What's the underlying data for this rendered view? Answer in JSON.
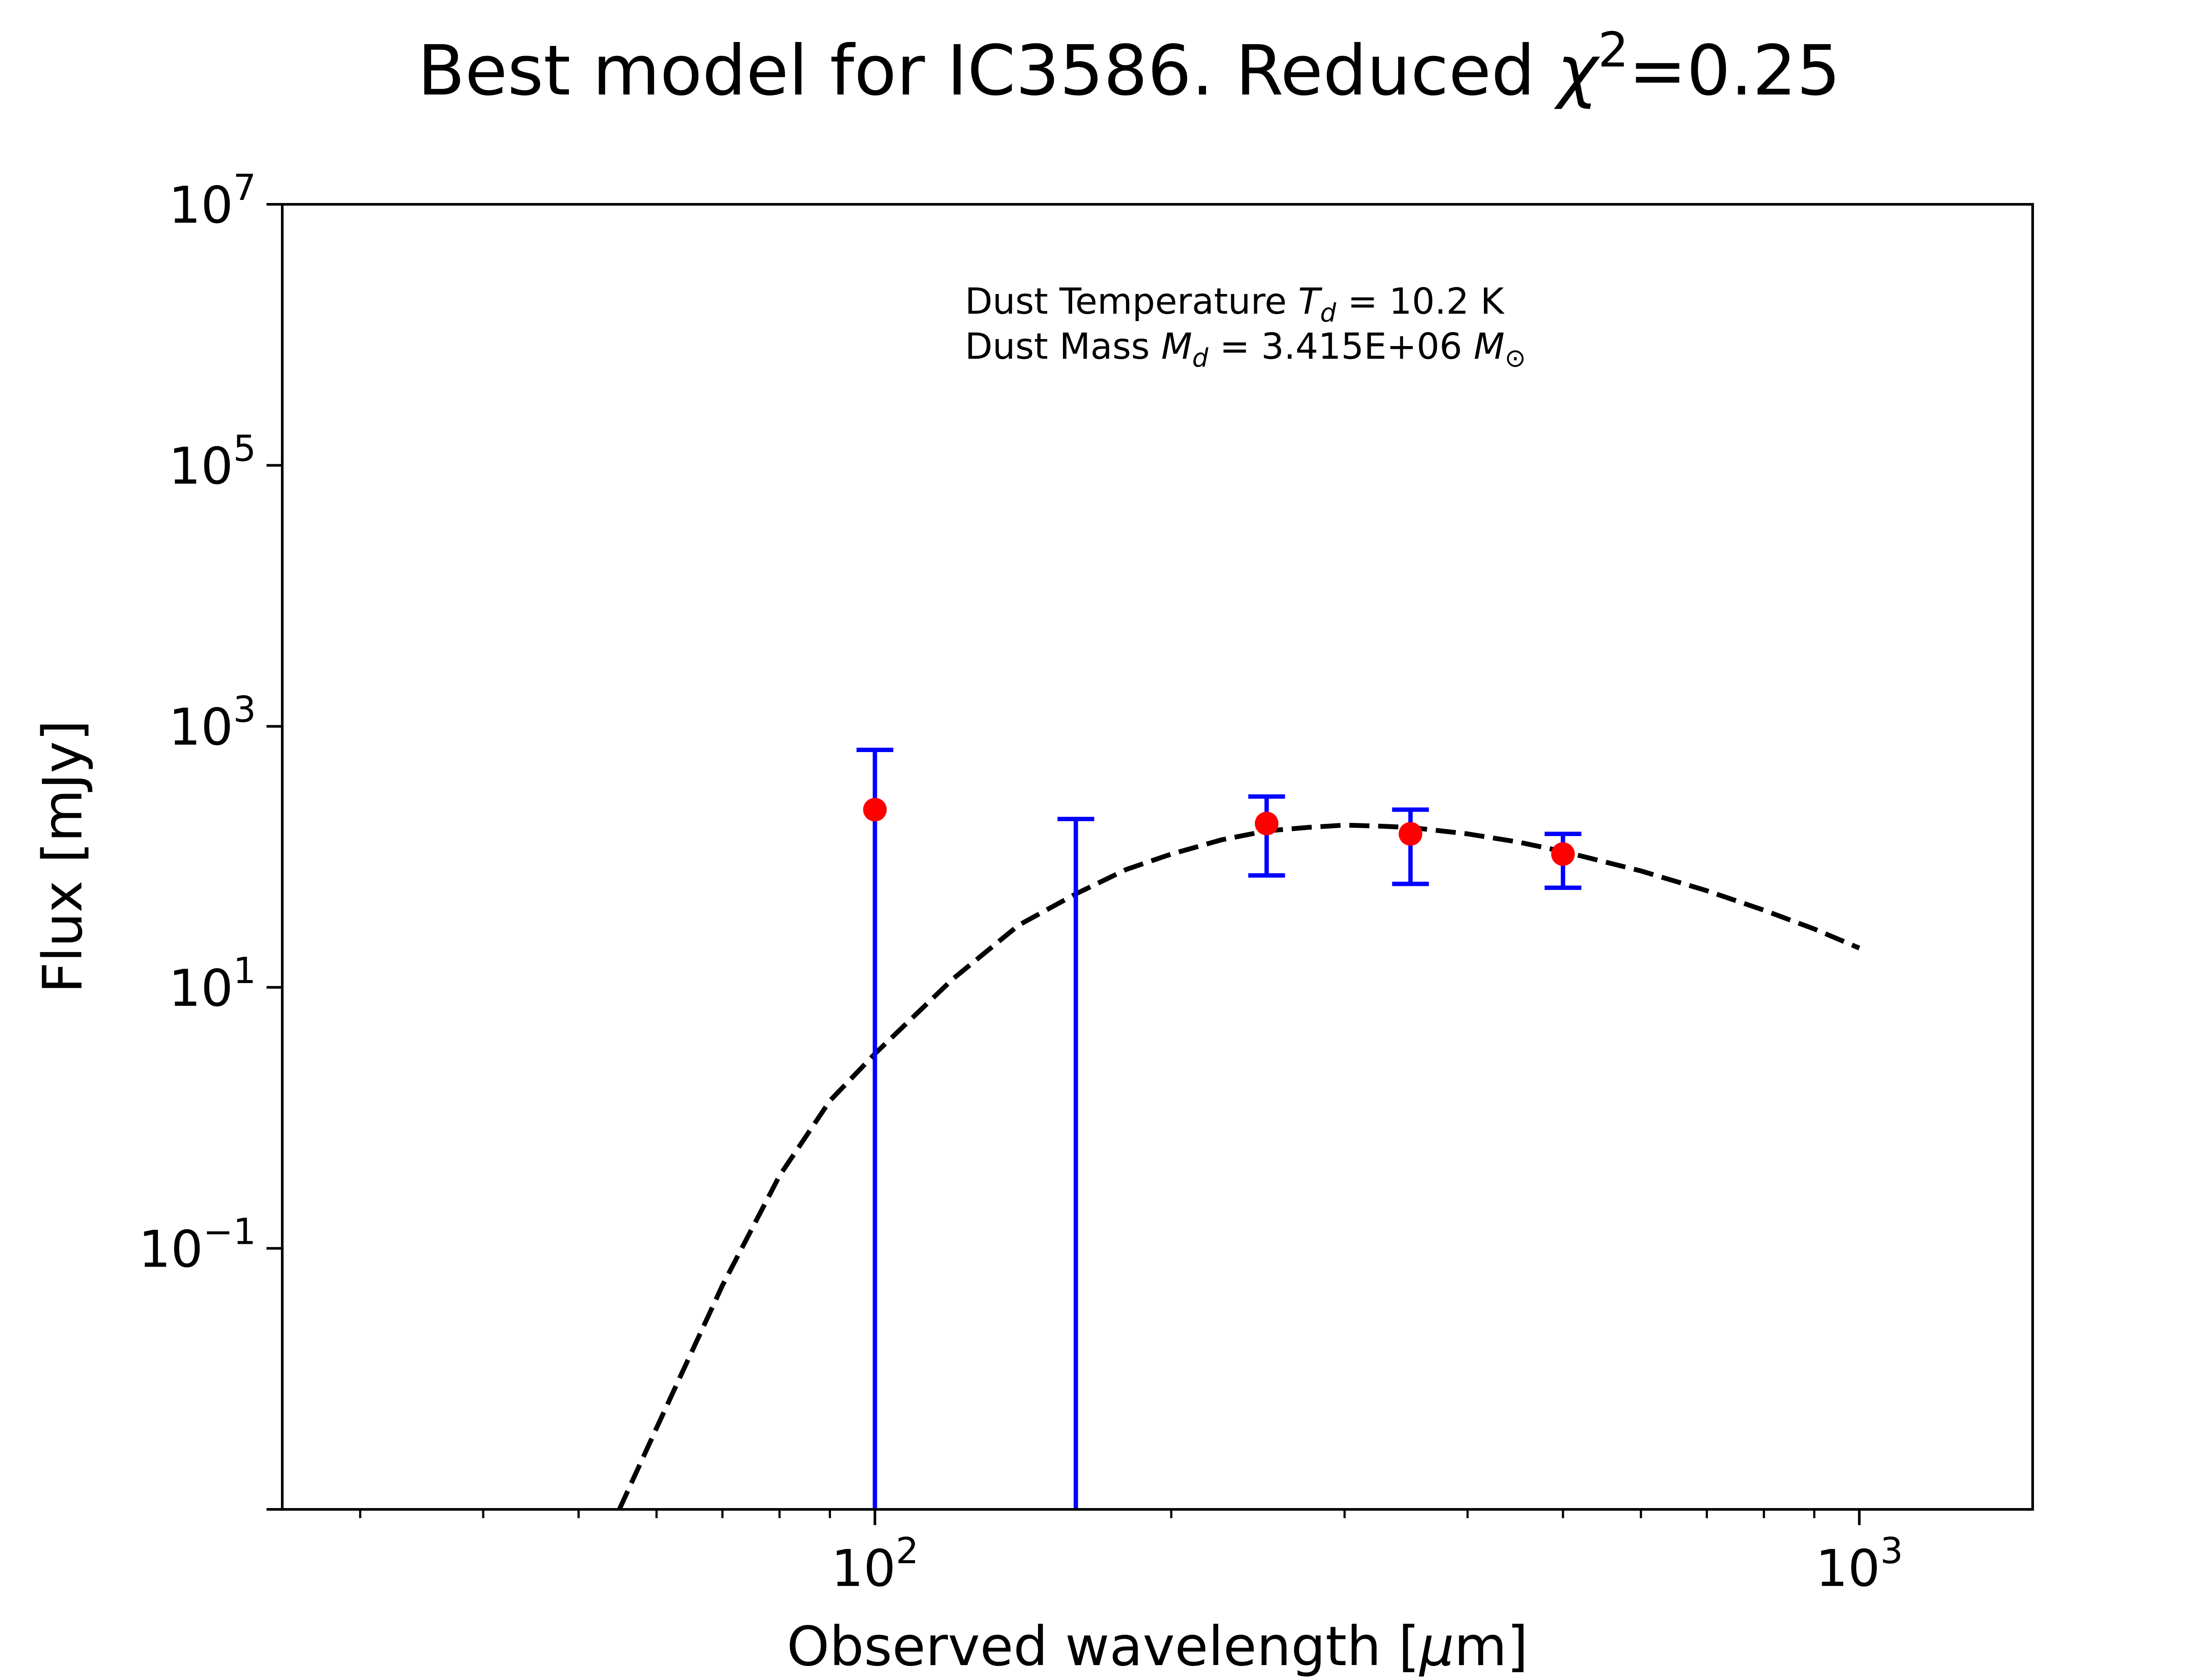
{
  "chart_data": {
    "type": "scatter",
    "title": {
      "prefix": "Best model for IC3586. Reduced ",
      "symbol": "χ",
      "exponent": "2",
      "suffix": "=0.25"
    },
    "xlabel": {
      "prefix": "Observed wavelength [",
      "symbol": "μ",
      "suffix": "m]"
    },
    "ylabel": "Flux [mJy]",
    "xscale": "log",
    "yscale": "log",
    "xlim": [
      25,
      1500
    ],
    "ylim": [
      0.001,
      10000000
    ],
    "x_major_ticks": [
      {
        "value": 100,
        "base": "10",
        "exp": "2"
      },
      {
        "value": 1000,
        "base": "10",
        "exp": "3"
      }
    ],
    "x_minor_ticks": [
      30,
      40,
      50,
      60,
      70,
      80,
      90,
      200,
      300,
      400,
      500,
      600,
      700,
      800,
      900
    ],
    "y_major_ticks": [
      {
        "value": 0.1,
        "base": "10",
        "exp": "−1"
      },
      {
        "value": 10,
        "base": "10",
        "exp": "1"
      },
      {
        "value": 1000,
        "base": "10",
        "exp": "3"
      },
      {
        "value": 100000,
        "base": "10",
        "exp": "5"
      },
      {
        "value": 10000000,
        "base": "10",
        "exp": "7"
      }
    ],
    "y_unlabeled_ticks": [
      0.001
    ],
    "grid": false,
    "observations": [
      {
        "x": 100,
        "y": 230,
        "yerr_low": 0.001,
        "yerr_high": 660,
        "point": true
      },
      {
        "x": 160,
        "y": null,
        "yerr_low": 0.001,
        "yerr_high": 195,
        "point": false
      },
      {
        "x": 250,
        "y": 180,
        "yerr_low": 72,
        "yerr_high": 290,
        "point": true
      },
      {
        "x": 350,
        "y": 150,
        "yerr_low": 62,
        "yerr_high": 230,
        "point": true
      },
      {
        "x": 500,
        "y": 105,
        "yerr_low": 58,
        "yerr_high": 150,
        "point": true
      }
    ],
    "model": {
      "style": "dashed",
      "x": [
        55,
        60,
        70,
        80,
        90,
        100,
        120,
        140,
        160,
        180,
        200,
        225,
        250,
        275,
        300,
        325,
        350,
        400,
        450,
        500,
        600,
        700,
        800,
        900,
        1000
      ],
      "y": [
        0.001,
        0.0042,
        0.052,
        0.36,
        1.35,
        3.1,
        11.6,
        30,
        52,
        80,
        105,
        135,
        158,
        168,
        175,
        172,
        168,
        150,
        130,
        110,
        78,
        55,
        39,
        28,
        20
      ]
    },
    "annotation": {
      "line1": {
        "prefix": "Dust Temperature ",
        "symbol": "T",
        "subscript": "d",
        "suffix": " = 10.2 K"
      },
      "line2": {
        "prefix": "Dust Mass ",
        "symbol": "M",
        "subscript": "d",
        "middle": " = 3.415E+06 ",
        "unit_symbol": "M",
        "unit_subscript": "⊙"
      }
    },
    "colors": {
      "errorbar": "#0000ff",
      "points": "#ff0000",
      "model": "#000000"
    }
  }
}
